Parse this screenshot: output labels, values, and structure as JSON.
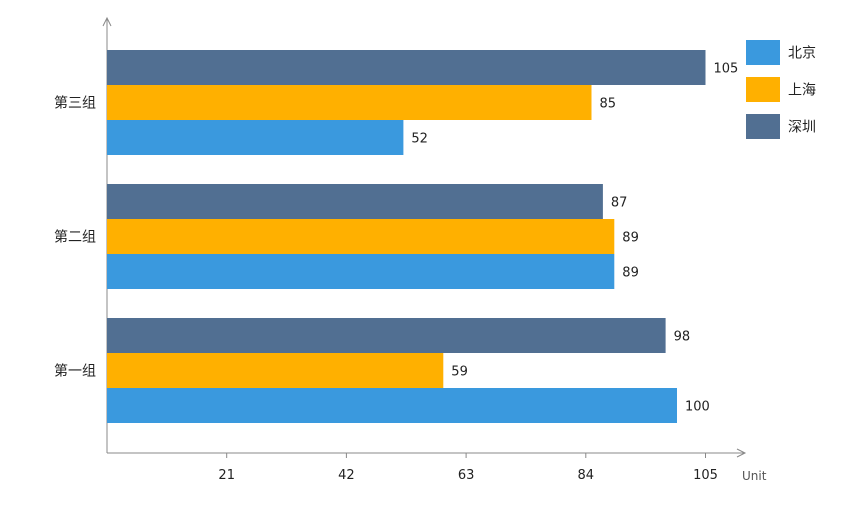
{
  "chart_data": {
    "type": "bar",
    "orientation": "horizontal",
    "title": "",
    "xlabel": "",
    "ylabel": "",
    "unit_label": "Unit",
    "xlim": [
      0,
      105
    ],
    "x_ticks": [
      21,
      42,
      63,
      84,
      105
    ],
    "grid": false,
    "legend_position": "top-right",
    "categories": [
      "第一组",
      "第二组",
      "第三组"
    ],
    "series": [
      {
        "name": "北京",
        "color": "#3A99DE",
        "values": [
          100,
          89,
          52
        ]
      },
      {
        "name": "上海",
        "color": "#FFB000",
        "values": [
          59,
          89,
          85
        ]
      },
      {
        "name": "深圳",
        "color": "#516F92",
        "values": [
          98,
          87,
          105
        ]
      }
    ]
  },
  "axis_color": "#888888"
}
